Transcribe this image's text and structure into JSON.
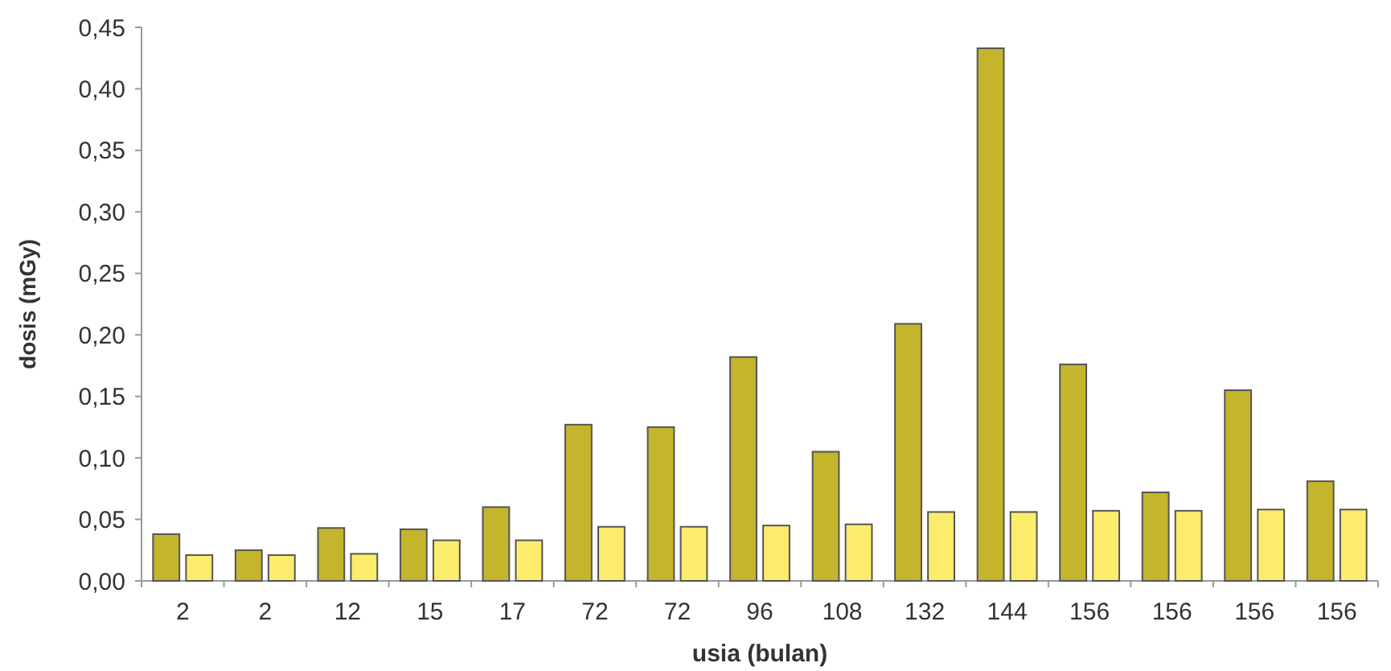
{
  "chart_data": {
    "type": "bar",
    "xlabel": "usia (bulan)",
    "ylabel": "dosis (mGy)",
    "categories": [
      "2",
      "2",
      "12",
      "15",
      "17",
      "72",
      "72",
      "96",
      "108",
      "132",
      "144",
      "156",
      "156",
      "156",
      "156"
    ],
    "series": [
      {
        "color": "#c4b52c",
        "values": [
          0.038,
          0.025,
          0.043,
          0.042,
          0.06,
          0.127,
          0.125,
          0.182,
          0.105,
          0.209,
          0.433,
          0.176,
          0.072,
          0.155,
          0.081
        ]
      },
      {
        "color": "#fcec6c",
        "values": [
          0.021,
          0.021,
          0.022,
          0.033,
          0.033,
          0.044,
          0.044,
          0.045,
          0.046,
          0.056,
          0.056,
          0.057,
          0.057,
          0.058,
          0.058
        ]
      }
    ],
    "ylim": [
      0,
      0.45
    ],
    "yticks": [
      {
        "value": 0,
        "label": "0,00"
      },
      {
        "value": 0.05,
        "label": "0,05"
      },
      {
        "value": 0.1,
        "label": "0,10"
      },
      {
        "value": 0.15,
        "label": "0,15"
      },
      {
        "value": 0.2,
        "label": "0,20"
      },
      {
        "value": 0.25,
        "label": "0,25"
      },
      {
        "value": 0.3,
        "label": "0,30"
      },
      {
        "value": 0.35,
        "label": "0,35"
      },
      {
        "value": 0.4,
        "label": "0,40"
      },
      {
        "value": 0.45,
        "label": "0,45"
      }
    ],
    "grid": false
  }
}
